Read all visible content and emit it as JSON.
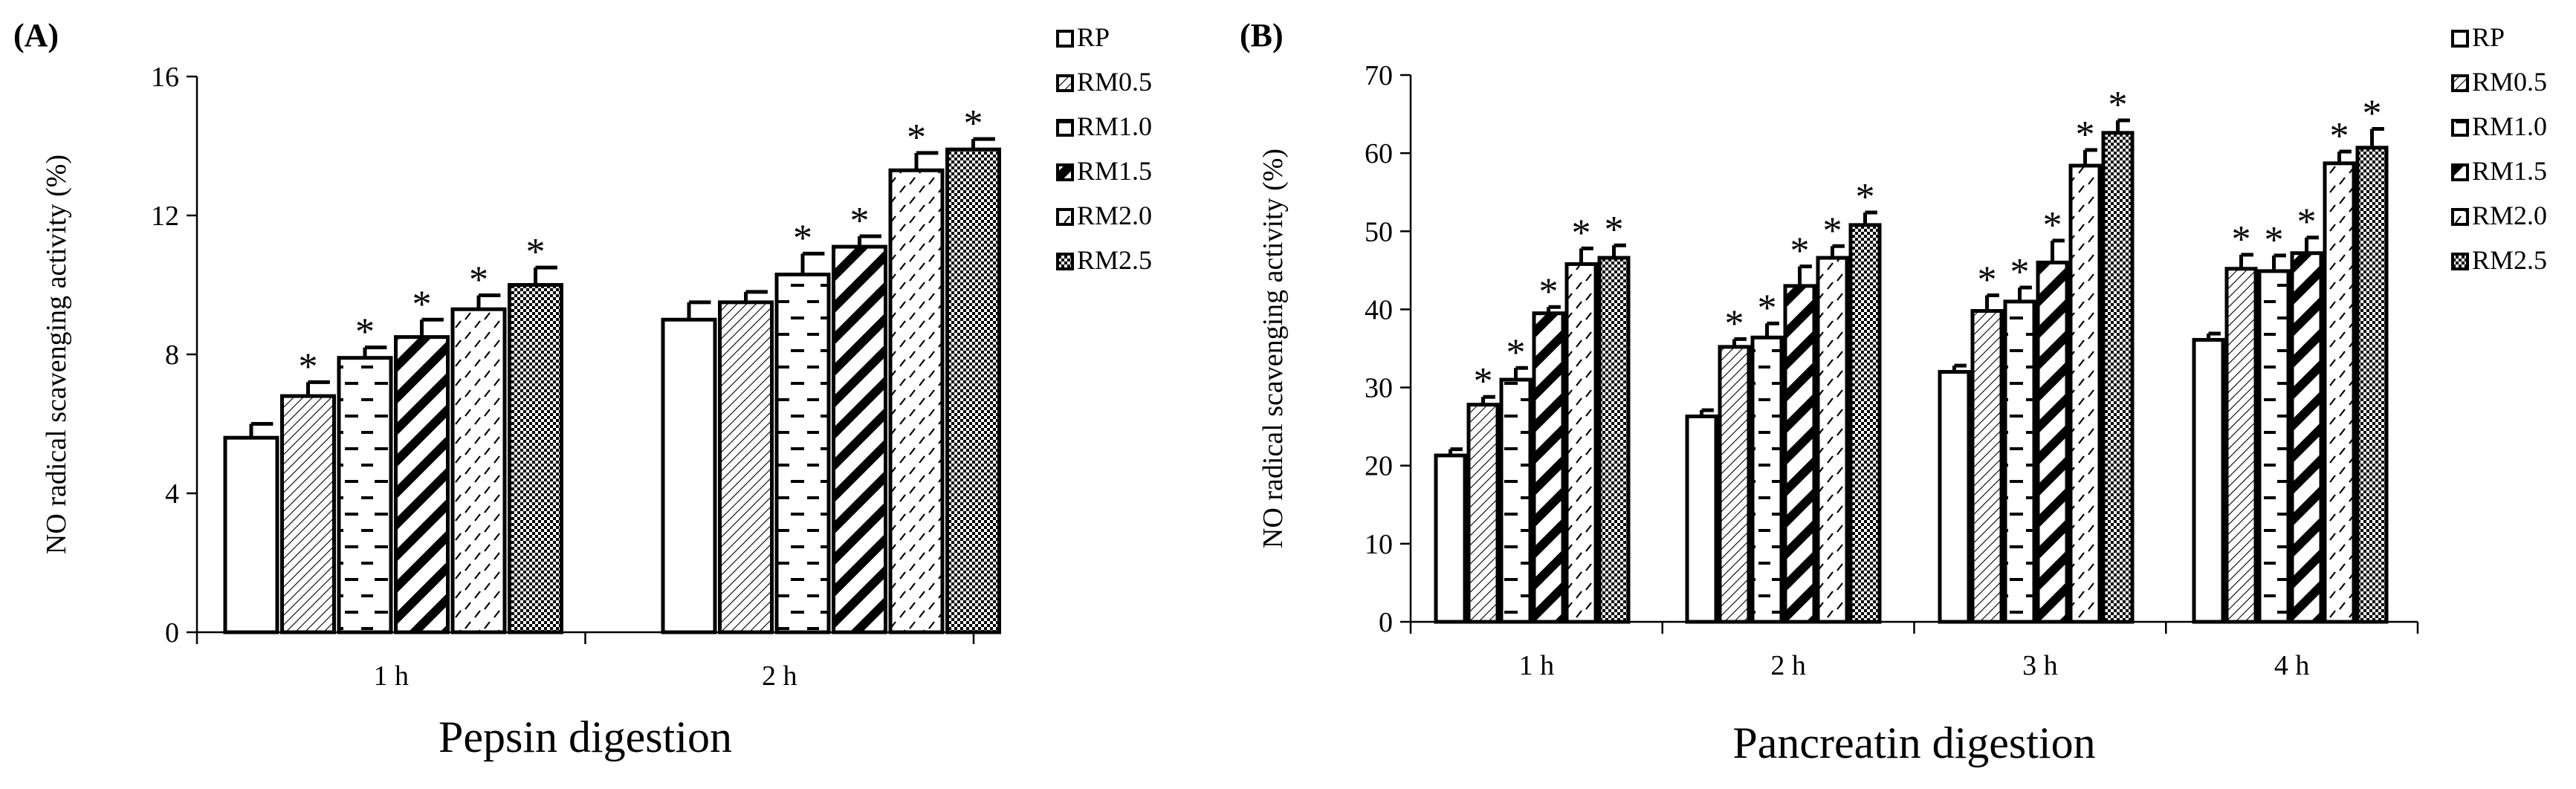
{
  "chart_data": [
    {
      "type": "bar",
      "panel_label": "(A)",
      "title": "",
      "xlabel": "Pepsin digestion",
      "ylabel": "NO radical scavenging activity (%)",
      "ylim": [
        0,
        16
      ],
      "yticks": [
        "0",
        "4",
        "8",
        "12",
        "16"
      ],
      "categories": [
        "1 h",
        "2 h"
      ],
      "legend": [
        "RP",
        "RM0.5",
        "RM1.0",
        "RM1.5",
        "RM2.0",
        "RM2.5"
      ],
      "legend_position": "right",
      "grid": false,
      "series": [
        {
          "name": "RP",
          "values": [
            5.6,
            9.0
          ],
          "errors": [
            0.4,
            0.5
          ],
          "significant": [
            false,
            false
          ]
        },
        {
          "name": "RM0.5",
          "values": [
            6.8,
            9.5
          ],
          "errors": [
            0.4,
            0.3
          ],
          "significant": [
            true,
            false
          ]
        },
        {
          "name": "RM1.0",
          "values": [
            7.9,
            10.3
          ],
          "errors": [
            0.3,
            0.6
          ],
          "significant": [
            true,
            true
          ]
        },
        {
          "name": "RM1.5",
          "values": [
            8.5,
            11.1
          ],
          "errors": [
            0.5,
            0.3
          ],
          "significant": [
            true,
            true
          ]
        },
        {
          "name": "RM2.0",
          "values": [
            9.3,
            13.3
          ],
          "errors": [
            0.4,
            0.5
          ],
          "significant": [
            true,
            true
          ]
        },
        {
          "name": "RM2.5",
          "values": [
            10.0,
            13.9
          ],
          "errors": [
            0.5,
            0.3
          ],
          "significant": [
            true,
            true
          ]
        }
      ],
      "significance_marker": "*"
    },
    {
      "type": "bar",
      "panel_label": "(B)",
      "title": "",
      "xlabel": "Pancreatin digestion",
      "ylabel": "NO radical scavenging activity (%)",
      "ylim": [
        0,
        70
      ],
      "yticks": [
        "0",
        "10",
        "20",
        "30",
        "40",
        "50",
        "60",
        "70"
      ],
      "categories": [
        "1 h",
        "2 h",
        "3 h",
        "4 h"
      ],
      "legend": [
        "RP",
        "RM0.5",
        "RM1.0",
        "RM1.5",
        "RM2.0",
        "RM2.5"
      ],
      "legend_position": "right",
      "grid": false,
      "series": [
        {
          "name": "RP",
          "values": [
            21.3,
            26.3,
            32.0,
            36.1
          ],
          "errors": [
            0.8,
            0.8,
            0.8,
            0.8
          ],
          "significant": [
            false,
            false,
            false,
            false
          ]
        },
        {
          "name": "RM0.5",
          "values": [
            27.8,
            35.2,
            39.8,
            45.2
          ],
          "errors": [
            1.0,
            1.0,
            2.0,
            1.8
          ],
          "significant": [
            true,
            true,
            true,
            true
          ]
        },
        {
          "name": "RM1.0",
          "values": [
            31.0,
            36.4,
            41.0,
            44.9
          ],
          "errors": [
            1.5,
            1.8,
            1.8,
            2.0
          ],
          "significant": [
            true,
            true,
            true,
            true
          ]
        },
        {
          "name": "RM1.5",
          "values": [
            39.5,
            43.0,
            46.0,
            47.2
          ],
          "errors": [
            0.8,
            2.5,
            2.8,
            2.0
          ],
          "significant": [
            true,
            true,
            true,
            true
          ]
        },
        {
          "name": "RM2.0",
          "values": [
            45.8,
            46.6,
            58.4,
            58.7
          ],
          "errors": [
            2.0,
            1.5,
            2.0,
            1.5
          ],
          "significant": [
            true,
            true,
            true,
            true
          ]
        },
        {
          "name": "RM2.5",
          "values": [
            46.6,
            50.8,
            62.6,
            60.7
          ],
          "errors": [
            1.6,
            1.6,
            1.6,
            2.4
          ],
          "significant": [
            true,
            true,
            true,
            true
          ]
        }
      ],
      "significance_marker": "*"
    }
  ]
}
